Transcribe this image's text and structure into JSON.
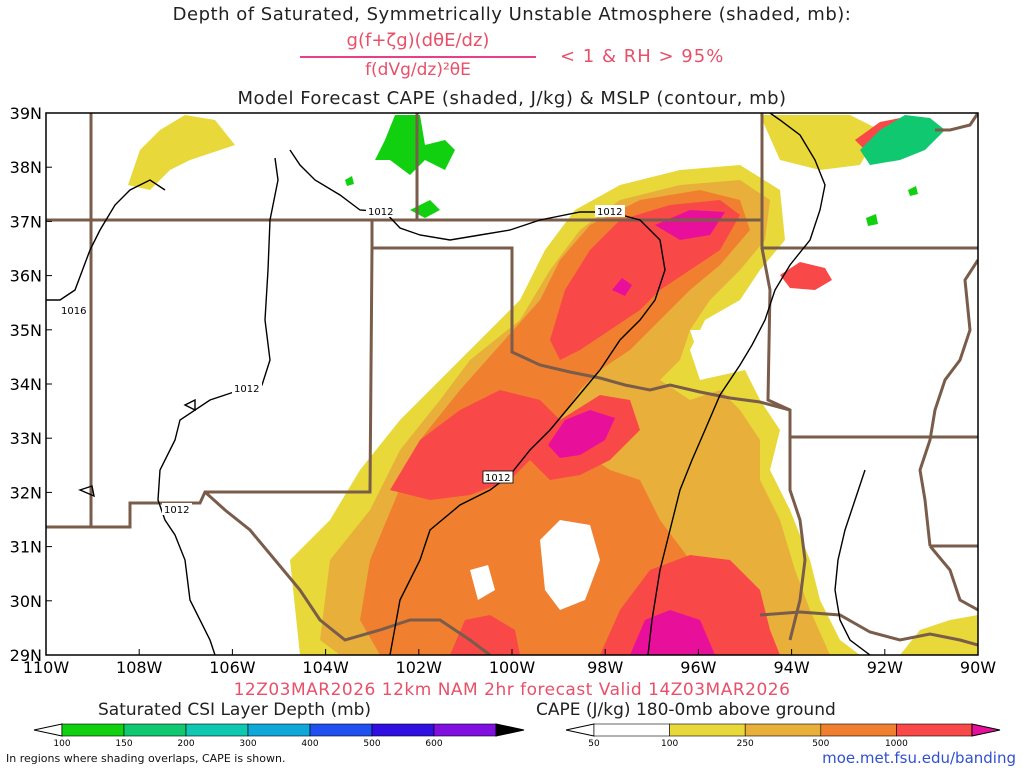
{
  "titles": {
    "line1": "Depth of Saturated, Symmetrically Unstable Atmosphere (shaded, mb):",
    "frac_num": "g(f+ζg)(dθE/dz)",
    "frac_den": "f(dVg/dz)²θE",
    "frac_cond": "< 1 & RH > 95%",
    "line3": "Model Forecast CAPE (shaded, J/kg) & MSLP (contour, mb)",
    "valid": "12Z03MAR2026 12km NAM 2hr forecast Valid 14Z03MAR2026"
  },
  "map": {
    "lat_labels": [
      "39N",
      "38N",
      "37N",
      "36N",
      "35N",
      "34N",
      "33N",
      "32N",
      "31N",
      "30N",
      "29N"
    ],
    "lon_labels": [
      "110W",
      "108W",
      "106W",
      "104W",
      "102W",
      "100W",
      "98W",
      "96W",
      "94W",
      "92W",
      "90W"
    ],
    "lat_values": [
      39,
      38,
      37,
      36,
      35,
      34,
      33,
      32,
      31,
      30,
      29
    ],
    "lon_values": [
      -110,
      -108,
      -106,
      -104,
      -102,
      -100,
      -98,
      -96,
      -94,
      -92,
      -90
    ],
    "isobar_labels": [
      "1016",
      "1012",
      "1012",
      "1012",
      "1012",
      "1012"
    ],
    "colors": {
      "cape_50": "#e8d83a",
      "cape_100": "#e8b03a",
      "cape_250": "#f08030",
      "cape_500": "#f84848",
      "cape_1000": "#e8109a",
      "csi_100": "#10d010",
      "csi_150": "#10c870",
      "border": "#7a5c4a",
      "isobar": "#000000"
    }
  },
  "colorbars": {
    "csi_title": "Saturated CSI Layer Depth (mb)",
    "csi_ticks": [
      "100",
      "150",
      "200",
      "300",
      "400",
      "500",
      "600"
    ],
    "csi_colors": [
      "#10d010",
      "#10c870",
      "#10c8b0",
      "#10a8d8",
      "#2050f0",
      "#3010e0",
      "#8010e0",
      "#000000"
    ],
    "cape_title": "CAPE (J/kg) 180-0mb above ground",
    "cape_ticks": [
      "50",
      "100",
      "250",
      "500",
      "1000"
    ],
    "cape_colors": [
      "#e8d83a",
      "#e8b03a",
      "#f08030",
      "#f84848",
      "#e8109a"
    ]
  },
  "footer": {
    "note": "In regions where shading overlaps, CAPE is shown.",
    "url": "moe.met.fsu.edu/banding"
  }
}
